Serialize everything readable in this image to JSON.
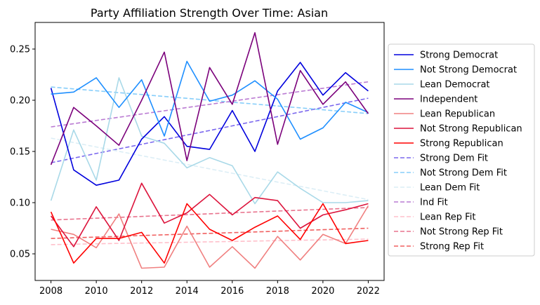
{
  "chart_data": {
    "type": "line",
    "title": "Party Affiliation Strength Over Time: Asian",
    "xlabel": "",
    "ylabel": "",
    "x": [
      2008,
      2009,
      2010,
      2011,
      2012,
      2013,
      2014,
      2015,
      2016,
      2017,
      2018,
      2019,
      2020,
      2021,
      2022
    ],
    "xlim": [
      2007.3,
      2022.7
    ],
    "ylim": [
      0.024,
      0.276
    ],
    "xticks": [
      2008,
      2010,
      2012,
      2014,
      2016,
      2018,
      2020,
      2022
    ],
    "yticks": [
      0.05,
      0.1,
      0.15,
      0.2,
      0.25
    ],
    "ytick_labels": [
      "0.05",
      "0.10",
      "0.15",
      "0.20",
      "0.25"
    ],
    "grid": false,
    "legend_position": "outside-right",
    "series": [
      {
        "name": "Strong Democrat",
        "color": "#0000dd",
        "style": "solid",
        "values": [
          0.212,
          0.132,
          0.117,
          0.122,
          0.162,
          0.184,
          0.155,
          0.152,
          0.19,
          0.15,
          0.209,
          0.237,
          0.205,
          0.227,
          0.209
        ]
      },
      {
        "name": "Not Strong Democrat",
        "color": "#1e8fff",
        "style": "solid",
        "values": [
          0.206,
          0.208,
          0.222,
          0.193,
          0.22,
          0.165,
          0.238,
          0.199,
          0.205,
          0.219,
          0.201,
          0.162,
          0.173,
          0.198,
          0.188
        ]
      },
      {
        "name": "Lean Democrat",
        "color": "#a9d9e8",
        "style": "solid",
        "values": [
          0.102,
          0.171,
          0.122,
          0.222,
          0.165,
          0.158,
          0.134,
          0.144,
          0.136,
          0.099,
          0.13,
          0.114,
          0.1,
          0.1,
          0.102
        ]
      },
      {
        "name": "Independent",
        "color": "#7b007b",
        "style": "solid",
        "values": [
          0.137,
          0.193,
          0.175,
          0.156,
          0.2,
          0.247,
          0.141,
          0.232,
          0.196,
          0.266,
          0.157,
          0.229,
          0.196,
          0.218,
          0.187
        ]
      },
      {
        "name": "Lean Republican",
        "color": "#f08080",
        "style": "solid",
        "values": [
          0.074,
          0.069,
          0.056,
          0.089,
          0.036,
          0.037,
          0.077,
          0.037,
          0.057,
          0.036,
          0.067,
          0.044,
          0.069,
          0.06,
          0.097
        ]
      },
      {
        "name": "Not Strong Republican",
        "color": "#dc143c",
        "style": "solid",
        "values": [
          0.087,
          0.057,
          0.096,
          0.063,
          0.119,
          0.08,
          0.09,
          0.108,
          0.088,
          0.105,
          0.102,
          0.075,
          0.088,
          0.093,
          0.099
        ]
      },
      {
        "name": "Strong Republican",
        "color": "#ff0000",
        "style": "solid",
        "values": [
          0.091,
          0.041,
          0.065,
          0.065,
          0.071,
          0.041,
          0.099,
          0.074,
          0.063,
          0.076,
          0.087,
          0.064,
          0.099,
          0.06,
          0.063
        ]
      },
      {
        "name": "Strong Dem Fit",
        "color": "#7b68ee",
        "style": "dashed",
        "values": [
          0.139,
          0.1435,
          0.148,
          0.1525,
          0.157,
          0.1615,
          0.166,
          0.1705,
          0.175,
          0.1795,
          0.184,
          0.1885,
          0.193,
          0.1975,
          0.202
        ]
      },
      {
        "name": "Not Strong Dem Fit",
        "color": "#87cefa",
        "style": "dashed",
        "values": [
          0.213,
          0.2111,
          0.2093,
          0.2074,
          0.2056,
          0.2037,
          0.2019,
          0.2,
          0.1981,
          0.1963,
          0.1944,
          0.1926,
          0.1907,
          0.1889,
          0.187
        ]
      },
      {
        "name": "Lean Dem Fit",
        "color": "#dceef6",
        "style": "dashed",
        "values": [
          0.163,
          0.1587,
          0.1544,
          0.1501,
          0.1459,
          0.1416,
          0.1373,
          0.133,
          0.1287,
          0.1244,
          0.1201,
          0.1159,
          0.1116,
          0.1073,
          0.103
        ]
      },
      {
        "name": "Ind Fit",
        "color": "#ba7bd3",
        "style": "dashed",
        "values": [
          0.174,
          0.1771,
          0.1803,
          0.1834,
          0.1866,
          0.1897,
          0.1929,
          0.196,
          0.1991,
          0.2023,
          0.2054,
          0.2086,
          0.2117,
          0.2149,
          0.218
        ]
      },
      {
        "name": "Lean Rep Fit",
        "color": "#ffc0cb",
        "style": "dashed",
        "values": [
          0.059,
          0.0594,
          0.0598,
          0.0602,
          0.0606,
          0.0609,
          0.0613,
          0.0617,
          0.0621,
          0.0625,
          0.0629,
          0.0633,
          0.0636,
          0.064,
          0.0644
        ]
      },
      {
        "name": "Not Strong Rep Fit",
        "color": "#e8748e",
        "style": "dashed",
        "values": [
          0.083,
          0.0839,
          0.0848,
          0.0856,
          0.0865,
          0.0874,
          0.0882,
          0.0891,
          0.09,
          0.0909,
          0.0918,
          0.0926,
          0.0935,
          0.0944,
          0.0952
        ]
      },
      {
        "name": "Strong Rep Fit",
        "color": "#f06060",
        "style": "dashed",
        "values": [
          0.065,
          0.0657,
          0.0664,
          0.0671,
          0.0679,
          0.0686,
          0.0693,
          0.07,
          0.0707,
          0.0714,
          0.0721,
          0.0729,
          0.0736,
          0.0743,
          0.075
        ]
      }
    ]
  }
}
